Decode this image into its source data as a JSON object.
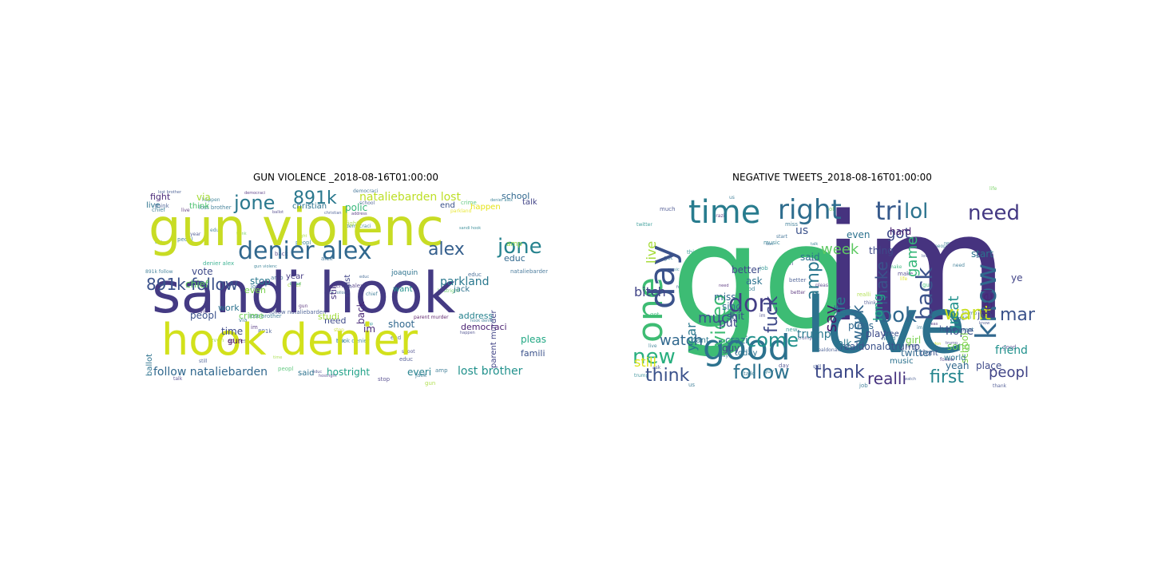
{
  "panels": [
    {
      "title": "GUN VIOLENCE _2018-08-16T01:00:00",
      "words": [
        {
          "text": "gun violenc",
          "color": "#c8dc24"
        },
        {
          "text": "sandi hook",
          "color": "#443a83"
        },
        {
          "text": "hook denier",
          "color": "#d2e11b"
        },
        {
          "text": "denier alex",
          "color": "#31688e"
        },
        {
          "text": "alex",
          "color": "#355f8d"
        },
        {
          "text": "jone",
          "color": "#26828e"
        },
        {
          "text": "jone",
          "color": "#2a788e"
        },
        {
          "text": "891k",
          "color": "#2a788e"
        },
        {
          "text": "891k follow",
          "color": "#3b528b"
        },
        {
          "text": "nataliebarden lost",
          "color": "#bddf26"
        },
        {
          "text": "school",
          "color": "#31688e"
        },
        {
          "text": "talk",
          "color": "#414487"
        },
        {
          "text": "fight",
          "color": "#482878"
        },
        {
          "text": "via",
          "color": "#a5db36"
        },
        {
          "text": "live",
          "color": "#2c728e"
        },
        {
          "text": "think",
          "color": "#4ac16d"
        },
        {
          "text": "christian",
          "color": "#2c728e"
        },
        {
          "text": "polic",
          "color": "#35b779"
        },
        {
          "text": "end",
          "color": "#3b528b"
        },
        {
          "text": "happen",
          "color": "#e5e419"
        },
        {
          "text": "amp",
          "color": "#90d743"
        },
        {
          "text": "educ",
          "color": "#31688e"
        },
        {
          "text": "vote",
          "color": "#3e4a89"
        },
        {
          "text": "chief",
          "color": "#5ec962"
        },
        {
          "text": "stop",
          "color": "#2a788e"
        },
        {
          "text": "year",
          "color": "#443a83"
        },
        {
          "text": "even",
          "color": "#7ad151"
        },
        {
          "text": "want",
          "color": "#21918c"
        },
        {
          "text": "jack",
          "color": "#2c728e"
        },
        {
          "text": "parkland",
          "color": "#2a788e"
        },
        {
          "text": "parent murder",
          "color": "#414487"
        },
        {
          "text": "work",
          "color": "#2c728e"
        },
        {
          "text": "back",
          "color": "#482878"
        },
        {
          "text": "peopl",
          "color": "#3b528b"
        },
        {
          "text": "crime",
          "color": "#6ece58"
        },
        {
          "text": "need",
          "color": "#3e4a89"
        },
        {
          "text": "im",
          "color": "#482878"
        },
        {
          "text": "shoot",
          "color": "#31688e"
        },
        {
          "text": "address",
          "color": "#26828e"
        },
        {
          "text": "democraci",
          "color": "#481f70"
        },
        {
          "text": "time",
          "color": "#3e4a89"
        },
        {
          "text": "gun",
          "color": "#440154"
        },
        {
          "text": "ballot",
          "color": "#2c728e"
        },
        {
          "text": "pleas",
          "color": "#22a884"
        },
        {
          "text": "famili",
          "color": "#3b528b"
        },
        {
          "text": "follow nataliebarden",
          "color": "#31688e"
        },
        {
          "text": "said",
          "color": "#2c728e"
        },
        {
          "text": "hostright",
          "color": "#1fa187"
        },
        {
          "text": "everi",
          "color": "#26828e"
        },
        {
          "text": "lost brother",
          "color": "#21918c"
        },
        {
          "text": "studi",
          "color": "#9fda3a"
        },
        {
          "text": "still",
          "color": "#46327e"
        },
        {
          "text": "regist",
          "color": "#414487"
        },
        {
          "text": "joaquin",
          "color": "#2c728e"
        }
      ]
    },
    {
      "title": "NEGATIVE TWEETS_2018-08-16T01:00:00",
      "words": [
        {
          "text": "go",
          "color": "#3dbc74"
        },
        {
          "text": "im",
          "color": "#46337f"
        },
        {
          "text": "love",
          "color": "#2c718e"
        },
        {
          "text": "one",
          "color": "#3ebc73"
        },
        {
          "text": "day",
          "color": "#3b528b"
        },
        {
          "text": "time",
          "color": "#287c8e"
        },
        {
          "text": "right",
          "color": "#2e6d8e"
        },
        {
          "text": "tri",
          "color": "#375a8c"
        },
        {
          "text": "lol",
          "color": "#2c738e"
        },
        {
          "text": "need",
          "color": "#443983"
        },
        {
          "text": "know",
          "color": "#31688e"
        },
        {
          "text": "good",
          "color": "#2c728e"
        },
        {
          "text": "new",
          "color": "#29af7f"
        },
        {
          "text": "think",
          "color": "#3b528b"
        },
        {
          "text": "follow",
          "color": "#2c728e"
        },
        {
          "text": "thank",
          "color": "#3e4a89"
        },
        {
          "text": "realli",
          "color": "#46327e"
        },
        {
          "text": "first",
          "color": "#25858e"
        },
        {
          "text": "peopl",
          "color": "#414487"
        },
        {
          "text": "look",
          "color": "#31688e"
        },
        {
          "text": "back",
          "color": "#3b528b"
        },
        {
          "text": "want",
          "color": "#c8e020"
        },
        {
          "text": "man",
          "color": "#3b528b"
        },
        {
          "text": "fuck",
          "color": "#3e4a89"
        },
        {
          "text": "don",
          "color": "#433e85"
        },
        {
          "text": "come",
          "color": "#21918c"
        },
        {
          "text": "video",
          "color": "#3dbc74"
        },
        {
          "text": "much",
          "color": "#3b528b"
        },
        {
          "text": "watch",
          "color": "#31688e"
        },
        {
          "text": "amp",
          "color": "#2a778e"
        },
        {
          "text": "say",
          "color": "#481b6d"
        },
        {
          "text": "work",
          "color": "#31688e"
        },
        {
          "text": "make",
          "color": "#3b528b"
        },
        {
          "text": "life",
          "color": "#2a788e"
        },
        {
          "text": "got",
          "color": "#3e4a89"
        },
        {
          "text": "week",
          "color": "#5ec962"
        },
        {
          "text": "great",
          "color": "#21918c"
        },
        {
          "text": "feel",
          "color": "#482878"
        },
        {
          "text": "live",
          "color": "#a5db36"
        },
        {
          "text": "bitch",
          "color": "#414487"
        },
        {
          "text": "year",
          "color": "#2a788e"
        },
        {
          "text": "still",
          "color": "#dde318"
        },
        {
          "text": "us",
          "color": "#3b528b"
        },
        {
          "text": "thing",
          "color": "#3e4a89"
        },
        {
          "text": "even",
          "color": "#2c728e"
        },
        {
          "text": "start",
          "color": "#2c728e"
        },
        {
          "text": "game",
          "color": "#35b779"
        },
        {
          "text": "long",
          "color": "#22a884"
        },
        {
          "text": "hope",
          "color": "#3b528b"
        },
        {
          "text": "friend",
          "color": "#21918c"
        },
        {
          "text": "song",
          "color": "#6ece58"
        },
        {
          "text": "job",
          "color": "#414487"
        },
        {
          "text": "school",
          "color": "#84d44b"
        },
        {
          "text": "place",
          "color": "#3e4a89"
        },
        {
          "text": "yeah",
          "color": "#31688e"
        },
        {
          "text": "dont",
          "color": "#3b528b"
        },
        {
          "text": "music",
          "color": "#2c728e"
        },
        {
          "text": "twitter",
          "color": "#31688e"
        },
        {
          "text": "realdonaldtrump",
          "color": "#3b528b"
        },
        {
          "text": "trump",
          "color": "#2a788e"
        },
        {
          "text": "play",
          "color": "#3e4a89"
        },
        {
          "text": "world",
          "color": "#2c728e"
        },
        {
          "text": "hate",
          "color": "#3b528b"
        },
        {
          "text": "hard",
          "color": "#481f70"
        },
        {
          "text": "better",
          "color": "#3e4a89"
        },
        {
          "text": "ask",
          "color": "#2c728e"
        },
        {
          "text": "said",
          "color": "#2c728e"
        },
        {
          "text": "talk",
          "color": "#2a788e"
        },
        {
          "text": "pleas",
          "color": "#31688e"
        },
        {
          "text": "free",
          "color": "#3b528b"
        },
        {
          "text": "put",
          "color": "#3e4a89"
        },
        {
          "text": "miss",
          "color": "#31688e"
        },
        {
          "text": "sinc",
          "color": "#2c728e"
        },
        {
          "text": "shit",
          "color": "#3b528b"
        },
        {
          "text": "guy",
          "color": "#3e4a89"
        },
        {
          "text": "today",
          "color": "#2c728e"
        },
        {
          "text": "cant",
          "color": "#2a788e"
        },
        {
          "text": "crazi",
          "color": "#2c728e"
        },
        {
          "text": "girl",
          "color": "#7ad151"
        },
        {
          "text": "ye",
          "color": "#414487"
        }
      ]
    }
  ]
}
